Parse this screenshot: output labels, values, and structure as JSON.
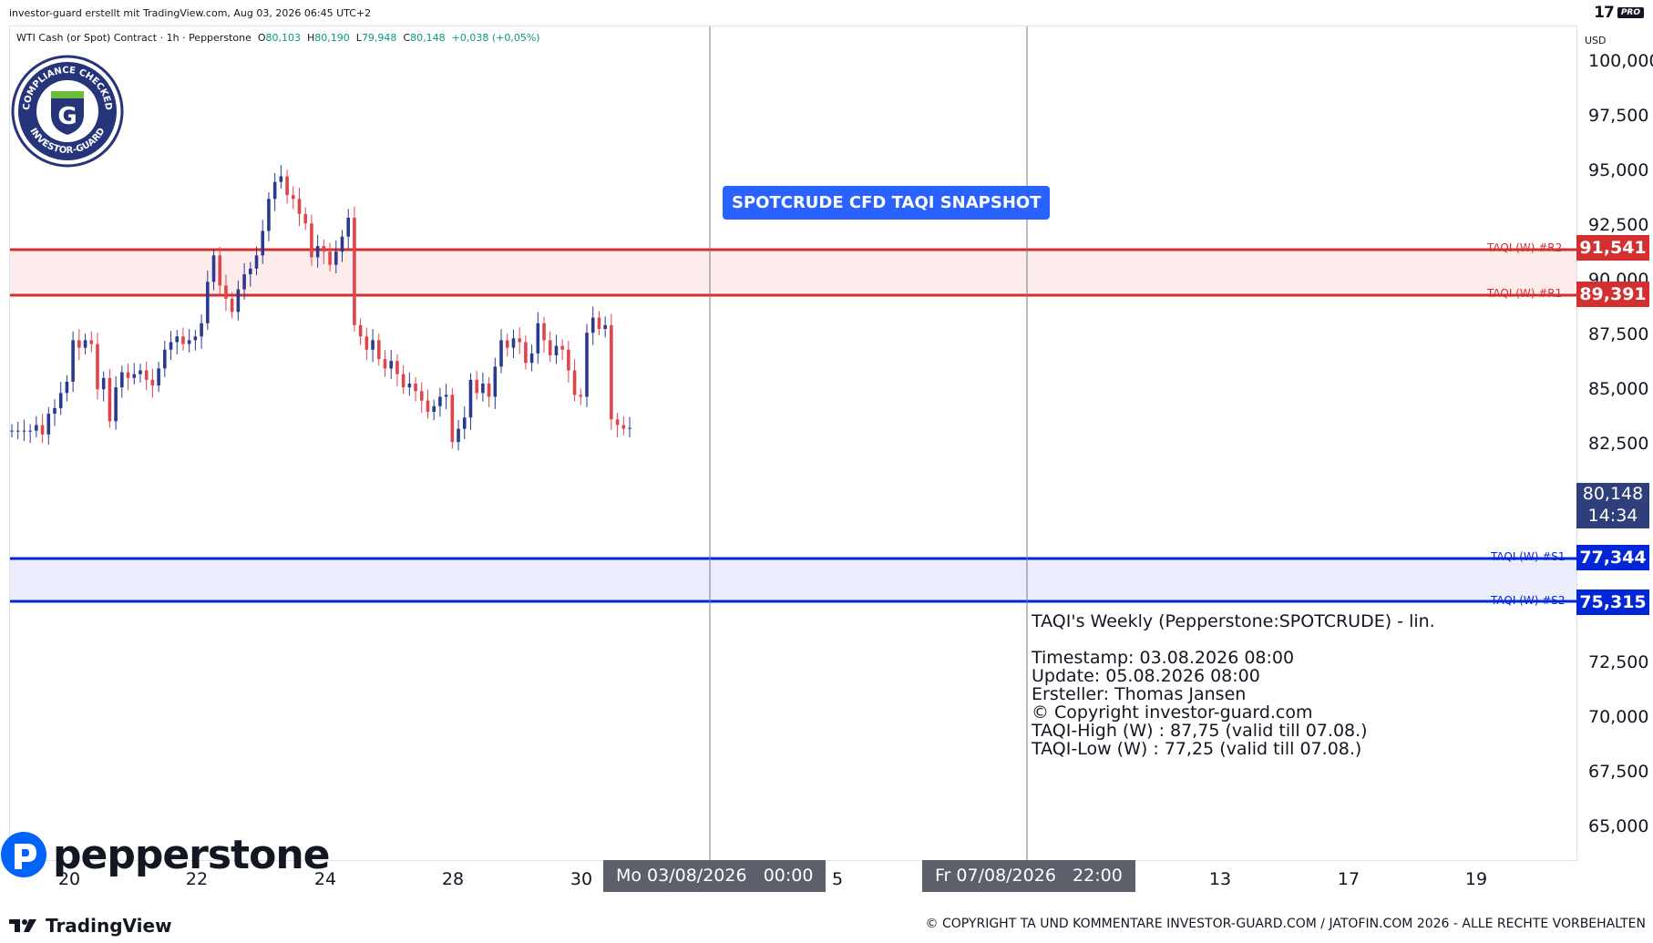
{
  "header": {
    "created_text": "investor-guard erstellt mit TradingView.com, Aug 03, 2026 06:45 UTC+2",
    "brand_logo": "17",
    "brand_badge": "PRO"
  },
  "symbol_bar": {
    "name": "WTI Cash (or Spot) Contract · 1h · Pepperstone",
    "open_label": "O",
    "open_value": "80,103",
    "high_label": "H",
    "high_value": "80,190",
    "low_label": "L",
    "low_value": "79,948",
    "close_label": "C",
    "close_value": "80,148",
    "change": "+0,038 (+0,05%)"
  },
  "badge": {
    "top_text": "COMPLIANCE CHECKED",
    "bottom_text": "INVESTOR-GUARD",
    "letter": "G"
  },
  "price_axis": {
    "currency": "USD",
    "ticks": [
      "100,000",
      "97,500",
      "95,000",
      "92,500",
      "90,000",
      "87,500",
      "85,000",
      "82,500",
      "72,500",
      "70,000",
      "67,500",
      "65,000"
    ]
  },
  "levels": {
    "r2": {
      "label": "TAQI (W) #R2",
      "price": "91,541",
      "color": "#d32f2f"
    },
    "r1": {
      "label": "TAQI (W) #R1",
      "price": "89,391",
      "color": "#d32f2f"
    },
    "s1": {
      "label": "TAQI (W) #S1",
      "price": "77,344",
      "color": "#0026d6"
    },
    "s2": {
      "label": "TAQI (W) #S2",
      "price": "75,315",
      "color": "#0026d6"
    }
  },
  "last_price": {
    "value": "80,148",
    "countdown": "14:34"
  },
  "snapshot_label": "SPOTCRUDE CFD TAQI SNAPSHOT",
  "info": {
    "title": "TAQI's Weekly (Pepperstone:SPOTCRUDE) - lin.",
    "timestamp": "Timestamp: 03.08.2026 08:00",
    "update": "Update: 05.08.2026 08:00",
    "author": "Ersteller: Thomas Jansen",
    "copyright": "© Copyright investor-guard.com",
    "taqi_high": "TAQI-High (W) : 87,75 (valid till 07.08.)",
    "taqi_low": "TAQI-Low (W) : 77,25 (valid till 07.08.)"
  },
  "time_axis": {
    "labels": [
      "20",
      "22",
      "24",
      "28",
      "30",
      "5",
      "13",
      "17",
      "19"
    ],
    "highlight_1": {
      "date": "Mo 03/08/2026",
      "time": "00:00"
    },
    "highlight_2": {
      "date": "Fr 07/08/2026",
      "time": "22:00"
    }
  },
  "footer": {
    "pepperstone": "pepperstone",
    "tradingview": "TradingView",
    "copyright": "© COPYRIGHT TA UND KOMMENTARE INVESTOR-GUARD.COM / JATOFIN.COM 2026 - ALLE RECHTE VORBEHALTEN"
  },
  "colors": {
    "up": "#2a3b8f",
    "down": "#e0454b",
    "resistance_fill": "#fdecec",
    "support_fill": "#eceefe"
  },
  "chart_data": {
    "type": "candlestick",
    "ylim": [
      63000,
      101500
    ],
    "close_series_hourly_approx": [
      80.0,
      80.0,
      80.0,
      80.0,
      80.3,
      79.8,
      80.9,
      81.2,
      82.0,
      82.6,
      84.8,
      84.4,
      84.8,
      84.6,
      82.2,
      82.8,
      80.5,
      82.3,
      83.1,
      82.8,
      83.0,
      83.2,
      82.7,
      82.4,
      83.3,
      84.3,
      84.7,
      85.0,
      84.6,
      84.8,
      85.0,
      85.7,
      87.9,
      89.3,
      87.7,
      87.0,
      86.3,
      87.5,
      88.3,
      88.6,
      89.3,
      90.6,
      92.3,
      93.2,
      93.5,
      92.5,
      92.3,
      91.5,
      91.0,
      89.2,
      89.8,
      89.5,
      88.8,
      89.5,
      90.3,
      91.3,
      85.6,
      85.0,
      84.3,
      84.8,
      83.8,
      83.3,
      83.7,
      83.0,
      82.3,
      82.5,
      82.1,
      81.6,
      81.0,
      81.3,
      81.8,
      81.9,
      79.4,
      80.1,
      80.7,
      82.7,
      82.0,
      82.5,
      81.8,
      83.4,
      84.8,
      84.4,
      84.9,
      84.7,
      83.6,
      84.1,
      85.7,
      84.8,
      84.0,
      84.5,
      84.3,
      83.2,
      81.9,
      81.8,
      85.2,
      86.0,
      85.4,
      85.6,
      80.6,
      80.3,
      80.1,
      80.148
    ]
  }
}
